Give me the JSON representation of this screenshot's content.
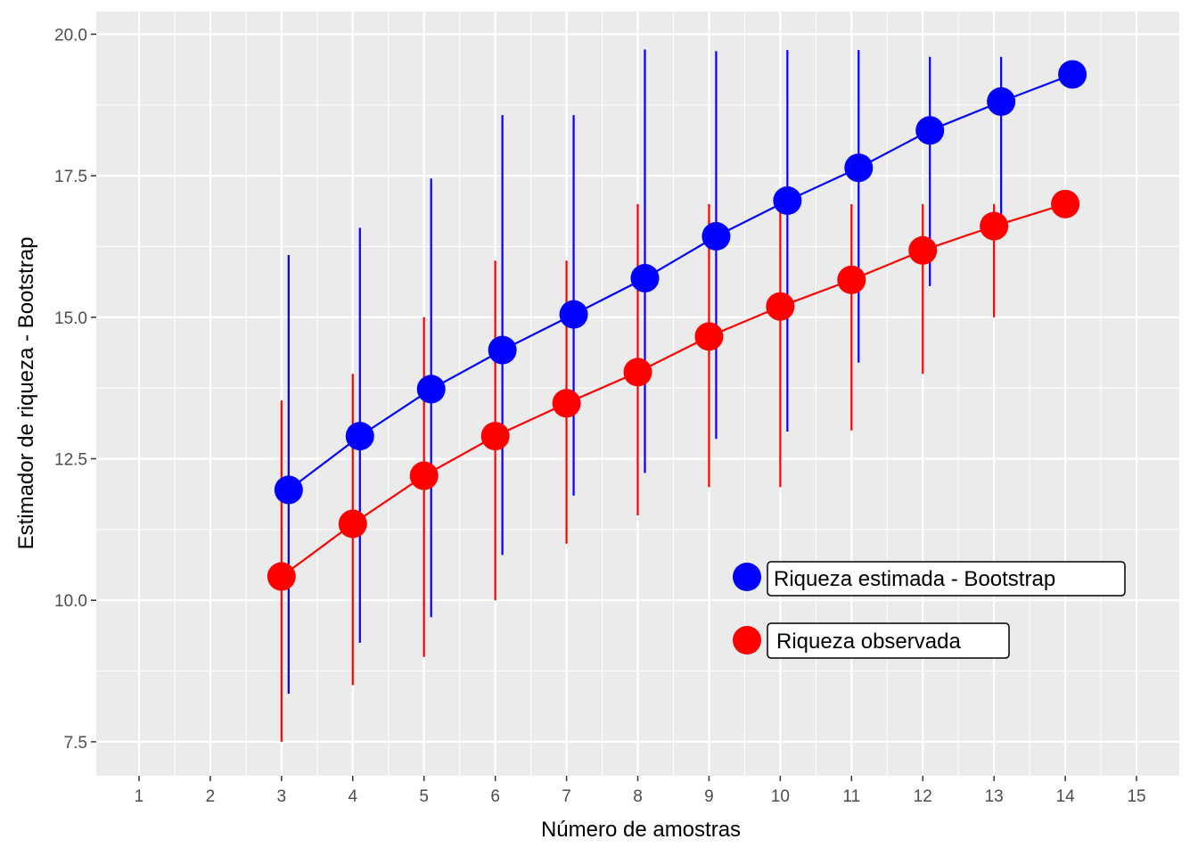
{
  "chart_data": {
    "type": "scatter",
    "title": "",
    "xlabel": "Número de amostras",
    "ylabel": "Estimador de riqueza - Bootstrap",
    "xlim": [
      0.4,
      15.6
    ],
    "ylim": [
      6.9,
      20.4
    ],
    "x_ticks": [
      "1",
      "2",
      "3",
      "4",
      "5",
      "6",
      "7",
      "8",
      "9",
      "10",
      "11",
      "12",
      "13",
      "14",
      "15"
    ],
    "y_ticks": [
      "7.5",
      "10.0",
      "12.5",
      "15.0",
      "17.5",
      "20.0"
    ],
    "grid": true,
    "legend_position": "inside-bottom-right",
    "series": [
      {
        "name": "Riqueza estimada - Bootstrap",
        "color": "#0000ff",
        "x_offset": 0.1,
        "x": [
          3,
          4,
          5,
          6,
          7,
          8,
          9,
          10,
          11,
          12,
          13,
          14
        ],
        "y": [
          11.95,
          12.9,
          13.73,
          14.42,
          15.05,
          15.69,
          16.43,
          17.06,
          17.64,
          18.3,
          18.81,
          19.29
        ],
        "ymin": [
          8.35,
          9.25,
          9.7,
          10.8,
          11.85,
          12.25,
          12.85,
          12.98,
          14.2,
          15.55,
          16.65,
          null
        ],
        "ymax": [
          16.1,
          16.58,
          17.45,
          18.57,
          18.57,
          19.73,
          19.7,
          19.72,
          19.72,
          19.6,
          19.6,
          null
        ]
      },
      {
        "name": "Riqueza observada",
        "color": "#ff0000",
        "x_offset": 0,
        "x": [
          3,
          4,
          5,
          6,
          7,
          8,
          9,
          10,
          11,
          12,
          13,
          14
        ],
        "y": [
          10.42,
          11.35,
          12.2,
          12.9,
          13.48,
          14.03,
          14.66,
          15.19,
          15.66,
          16.18,
          16.61,
          17.0
        ],
        "ymin": [
          7.5,
          8.5,
          9.0,
          10.0,
          11.0,
          11.5,
          12.0,
          12.0,
          13.0,
          14.0,
          15.0,
          null
        ],
        "ymax": [
          13.53,
          14.0,
          15.0,
          16.0,
          16.0,
          17.0,
          17.0,
          17.0,
          17.0,
          17.0,
          17.0,
          null
        ]
      }
    ]
  }
}
